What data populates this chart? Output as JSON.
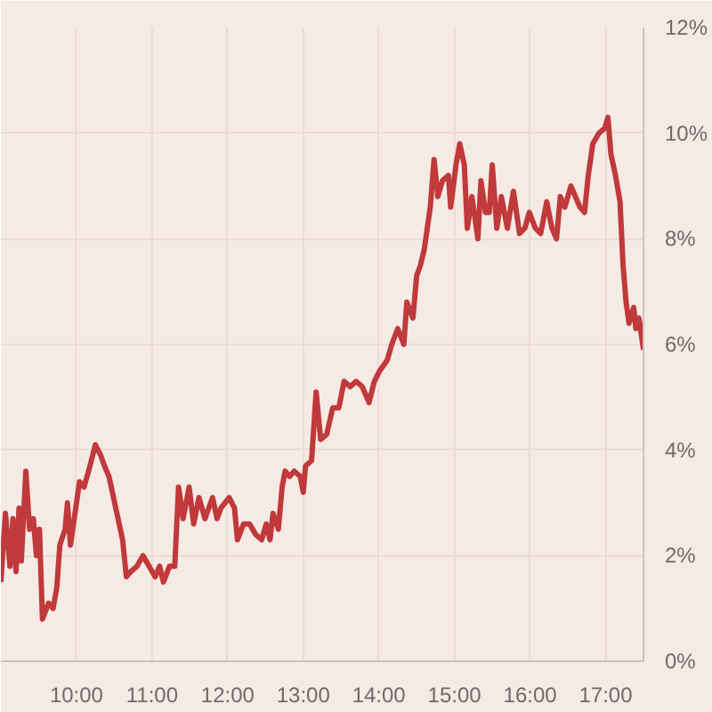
{
  "chart_data": {
    "type": "line",
    "x": [
      9.0,
      9.06,
      9.12,
      9.16,
      9.2,
      9.24,
      9.27,
      9.33,
      9.38,
      9.43,
      9.47,
      9.51,
      9.55,
      9.63,
      9.69,
      9.74,
      9.78,
      9.85,
      9.88,
      9.92,
      9.98,
      10.04,
      10.1,
      10.16,
      10.25,
      10.32,
      10.37,
      10.43,
      10.49,
      10.55,
      10.61,
      10.66,
      10.72,
      10.8,
      10.88,
      10.96,
      11.04,
      11.1,
      11.15,
      11.23,
      11.3,
      11.35,
      11.41,
      11.49,
      11.55,
      11.62,
      11.7,
      11.8,
      11.86,
      11.91,
      12.02,
      12.09,
      12.13,
      12.21,
      12.29,
      12.37,
      12.45,
      12.51,
      12.56,
      12.6,
      12.67,
      12.72,
      12.76,
      12.82,
      12.88,
      12.96,
      13.0,
      13.03,
      13.11,
      13.17,
      13.23,
      13.31,
      13.39,
      13.47,
      13.54,
      13.62,
      13.7,
      13.78,
      13.87,
      13.94,
      14.01,
      14.11,
      14.17,
      14.25,
      14.33,
      14.37,
      14.45,
      14.5,
      14.55,
      14.6,
      14.64,
      14.68,
      14.73,
      14.78,
      14.84,
      14.92,
      14.95,
      15.02,
      15.07,
      15.13,
      15.17,
      15.23,
      15.31,
      15.35,
      15.41,
      15.46,
      15.5,
      15.56,
      15.62,
      15.7,
      15.78,
      15.86,
      15.93,
      15.99,
      16.07,
      16.14,
      16.22,
      16.29,
      16.35,
      16.4,
      16.46,
      16.54,
      16.6,
      16.66,
      16.72,
      16.77,
      16.83,
      16.91,
      16.99,
      17.03,
      17.07,
      17.13,
      17.19,
      17.23,
      17.27,
      17.31,
      17.37,
      17.4,
      17.44,
      17.5
    ],
    "series": [
      {
        "color": "#c0393b",
        "values": [
          1.5,
          2.8,
          1.8,
          2.7,
          1.7,
          2.9,
          1.9,
          3.6,
          2.5,
          2.7,
          2.0,
          2.5,
          0.8,
          1.1,
          1.0,
          1.4,
          2.2,
          2.5,
          3.0,
          2.2,
          2.8,
          3.4,
          3.3,
          3.6,
          4.1,
          3.9,
          3.7,
          3.5,
          3.1,
          2.7,
          2.3,
          1.6,
          1.7,
          1.8,
          2.0,
          1.8,
          1.6,
          1.8,
          1.5,
          1.8,
          1.8,
          3.3,
          2.7,
          3.3,
          2.6,
          3.1,
          2.7,
          3.1,
          2.7,
          2.9,
          3.1,
          2.9,
          2.3,
          2.6,
          2.6,
          2.4,
          2.3,
          2.6,
          2.3,
          2.8,
          2.5,
          3.3,
          3.6,
          3.5,
          3.6,
          3.5,
          3.2,
          3.7,
          3.8,
          5.1,
          4.2,
          4.3,
          4.8,
          4.8,
          5.3,
          5.2,
          5.3,
          5.2,
          4.9,
          5.3,
          5.5,
          5.7,
          6.0,
          6.3,
          6.0,
          6.8,
          6.5,
          7.3,
          7.5,
          7.8,
          8.2,
          8.6,
          9.5,
          8.8,
          9.1,
          9.2,
          8.6,
          9.4,
          9.8,
          9.4,
          8.2,
          8.8,
          8.0,
          9.1,
          8.5,
          8.5,
          9.4,
          8.2,
          8.8,
          8.2,
          8.9,
          8.1,
          8.2,
          8.5,
          8.2,
          8.1,
          8.7,
          8.2,
          8.0,
          8.8,
          8.6,
          9.0,
          8.8,
          8.6,
          8.5,
          9.2,
          9.8,
          10.0,
          10.1,
          10.3,
          9.6,
          9.2,
          8.7,
          7.5,
          6.8,
          6.4,
          6.7,
          6.3,
          6.5,
          5.9
        ]
      }
    ],
    "xlim": [
      9,
      17.5
    ],
    "xticks": [
      {
        "value": 10,
        "label": "10:00"
      },
      {
        "value": 11,
        "label": "11:00"
      },
      {
        "value": 12,
        "label": "12:00"
      },
      {
        "value": 13,
        "label": "13:00"
      },
      {
        "value": 14,
        "label": "14:00"
      },
      {
        "value": 15,
        "label": "15:00"
      },
      {
        "value": 16,
        "label": "16:00"
      },
      {
        "value": 17,
        "label": "17:00"
      }
    ],
    "ylim": [
      0,
      12
    ],
    "yticks": [
      {
        "value": 0,
        "label": "0%"
      },
      {
        "value": 2,
        "label": "2%"
      },
      {
        "value": 4,
        "label": "4%"
      },
      {
        "value": 6,
        "label": "6%"
      },
      {
        "value": 8,
        "label": "8%"
      },
      {
        "value": 10,
        "label": "10%"
      },
      {
        "value": 12,
        "label": "12%"
      }
    ],
    "grid": true,
    "line_style": "solid"
  }
}
